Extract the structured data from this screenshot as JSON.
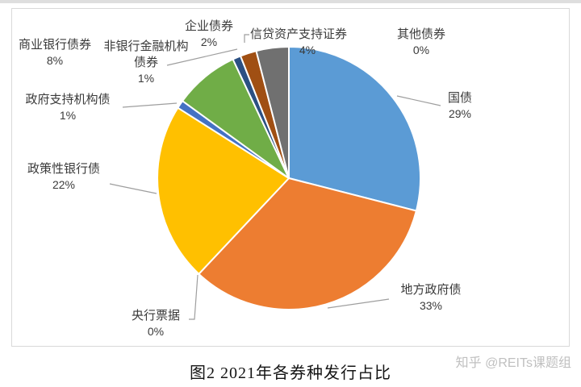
{
  "page": {
    "background": "#ffffff",
    "top_strip_color": "#dedede",
    "plot_border_color": "#d9d9d9",
    "leader_line_color": "#9e9e9e",
    "label_text_color": "#3a3a3a"
  },
  "caption": {
    "text": "图2  2021年各券种发行占比"
  },
  "watermark": {
    "text": "知乎 @REITs课题组"
  },
  "chart_data": {
    "type": "pie",
    "title": "图2  2021年各券种发行占比",
    "legend": "none",
    "direction": "clockwise",
    "start_angle_deg_from_top": 0,
    "labels_outside_with_leader_lines": true,
    "slices": [
      {
        "label": "国债",
        "pct": 29,
        "color": "#5B9BD5"
      },
      {
        "label": "地方政府债",
        "pct": 33,
        "color": "#ED7D31"
      },
      {
        "label": "央行票据",
        "pct": 0,
        "color": "#A5A5A5"
      },
      {
        "label": "政策性银行债",
        "pct": 22,
        "color": "#FFC000"
      },
      {
        "label": "政府支持机构债",
        "pct": 1,
        "color": "#4472C4"
      },
      {
        "label": "商业银行债券",
        "pct": 8,
        "color": "#70AD47"
      },
      {
        "label": "非银行金融机构债券",
        "pct": 1,
        "color": "#2B5083"
      },
      {
        "label": "企业债券",
        "pct": 2,
        "color": "#A04F13"
      },
      {
        "label": "信贷资产支持证券",
        "pct": 4,
        "color": "#707070"
      },
      {
        "label": "其他债券",
        "pct": 0,
        "color": "#997300"
      }
    ]
  }
}
